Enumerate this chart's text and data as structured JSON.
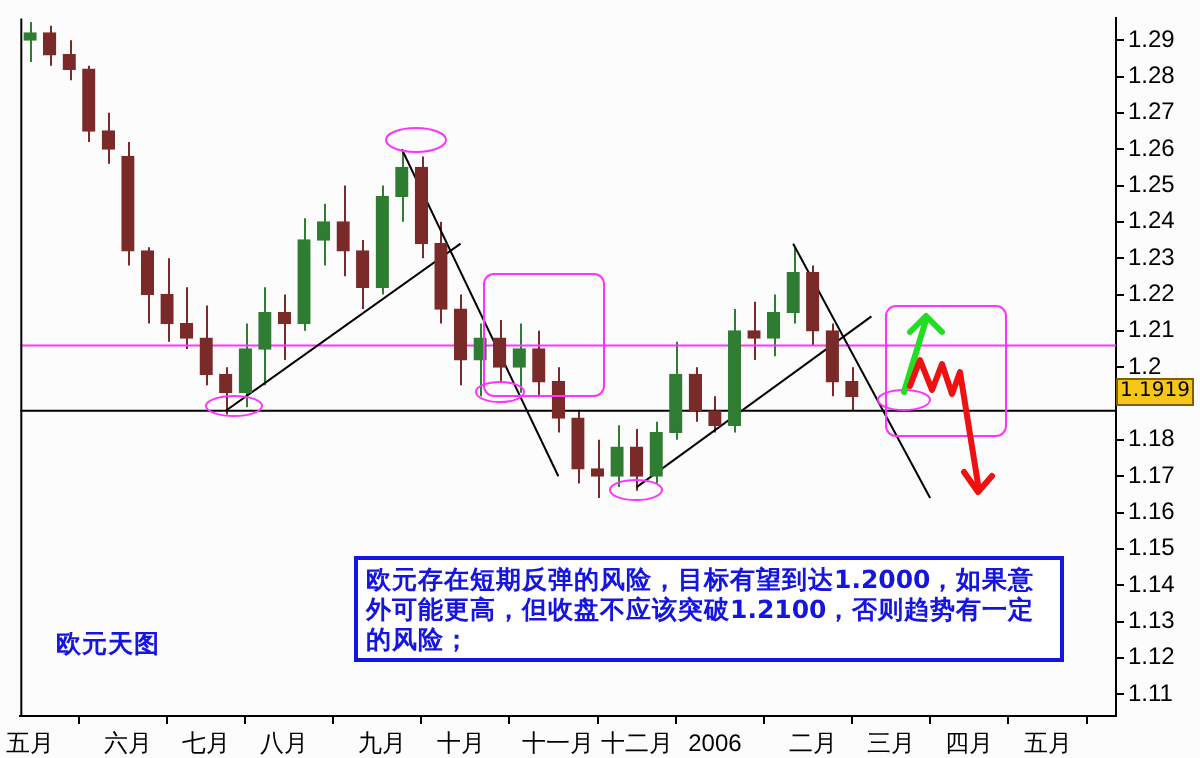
{
  "chart_data": {
    "type": "candlestick",
    "categories": [
      "五月",
      null,
      null,
      null,
      null,
      "六月",
      null,
      null,
      null,
      "七月",
      null,
      null,
      null,
      "八月",
      null,
      null,
      null,
      null,
      "九月",
      null,
      null,
      null,
      "十月",
      null,
      null,
      null,
      null,
      "十一月",
      null,
      null,
      null,
      "十二月",
      null,
      null,
      null,
      "2006",
      null,
      null,
      null,
      null,
      "二月",
      null,
      null,
      null,
      "三月",
      null,
      null,
      null,
      "四月",
      null,
      null,
      null,
      "五月",
      null,
      null,
      null
    ],
    "ohlc": [
      [
        1.29,
        1.295,
        1.284,
        1.292
      ],
      [
        1.292,
        1.294,
        1.283,
        1.286
      ],
      [
        1.286,
        1.29,
        1.279,
        1.282
      ],
      [
        1.282,
        1.283,
        1.262,
        1.265
      ],
      [
        1.265,
        1.27,
        1.256,
        1.26
      ],
      [
        1.258,
        1.262,
        1.228,
        1.232
      ],
      [
        1.232,
        1.233,
        1.212,
        1.22
      ],
      [
        1.22,
        1.23,
        1.207,
        1.212
      ],
      [
        1.212,
        1.222,
        1.205,
        1.208
      ],
      [
        1.208,
        1.217,
        1.195,
        1.198
      ],
      [
        1.198,
        1.2,
        1.187,
        1.193
      ],
      [
        1.193,
        1.212,
        1.189,
        1.205
      ],
      [
        1.205,
        1.222,
        1.195,
        1.215
      ],
      [
        1.215,
        1.22,
        1.202,
        1.212
      ],
      [
        1.212,
        1.241,
        1.21,
        1.235
      ],
      [
        1.235,
        1.245,
        1.228,
        1.24
      ],
      [
        1.24,
        1.25,
        1.225,
        1.232
      ],
      [
        1.232,
        1.235,
        1.216,
        1.222
      ],
      [
        1.222,
        1.25,
        1.22,
        1.247
      ],
      [
        1.247,
        1.259,
        1.24,
        1.255
      ],
      [
        1.255,
        1.258,
        1.23,
        1.234
      ],
      [
        1.234,
        1.24,
        1.212,
        1.216
      ],
      [
        1.216,
        1.22,
        1.195,
        1.202
      ],
      [
        1.202,
        1.212,
        1.192,
        1.208
      ],
      [
        1.208,
        1.213,
        1.196,
        1.2
      ],
      [
        1.2,
        1.212,
        1.193,
        1.205
      ],
      [
        1.205,
        1.21,
        1.192,
        1.196
      ],
      [
        1.196,
        1.2,
        1.182,
        1.186
      ],
      [
        1.186,
        1.188,
        1.168,
        1.172
      ],
      [
        1.172,
        1.18,
        1.164,
        1.17
      ],
      [
        1.17,
        1.184,
        1.167,
        1.178
      ],
      [
        1.178,
        1.183,
        1.166,
        1.17
      ],
      [
        1.17,
        1.185,
        1.168,
        1.182
      ],
      [
        1.182,
        1.207,
        1.18,
        1.198
      ],
      [
        1.198,
        1.2,
        1.185,
        1.188
      ],
      [
        1.188,
        1.192,
        1.182,
        1.184
      ],
      [
        1.184,
        1.216,
        1.182,
        1.21
      ],
      [
        1.21,
        1.218,
        1.202,
        1.208
      ],
      [
        1.208,
        1.22,
        1.203,
        1.215
      ],
      [
        1.215,
        1.233,
        1.212,
        1.226
      ],
      [
        1.226,
        1.228,
        1.206,
        1.21
      ],
      [
        1.21,
        1.212,
        1.192,
        1.196
      ],
      [
        1.196,
        1.2,
        1.188,
        1.1919
      ],
      null,
      null,
      null,
      null,
      null,
      null,
      null,
      null,
      null,
      null,
      null,
      null,
      null
    ],
    "colors": [
      "#2e7d32",
      "#7b2a2a",
      "#7b2a2a",
      "#7b2a2a",
      "#7b2a2a",
      "#7b2a2a",
      "#7b2a2a",
      "#7b2a2a",
      "#7b2a2a",
      "#7b2a2a",
      "#7b2a2a",
      "#2e7d32",
      "#2e7d32",
      "#7b2a2a",
      "#2e7d32",
      "#2e7d32",
      "#7b2a2a",
      "#7b2a2a",
      "#2e7d32",
      "#2e7d32",
      "#7b2a2a",
      "#7b2a2a",
      "#7b2a2a",
      "#2e7d32",
      "#7b2a2a",
      "#2e7d32",
      "#7b2a2a",
      "#7b2a2a",
      "#7b2a2a",
      "#7b2a2a",
      "#2e7d32",
      "#7b2a2a",
      "#2e7d32",
      "#2e7d32",
      "#7b2a2a",
      "#7b2a2a",
      "#2e7d32",
      "#7b2a2a",
      "#2e7d32",
      "#2e7d32",
      "#7b2a2a",
      "#7b2a2a",
      "#7b2a2a",
      null,
      null,
      null,
      null,
      null,
      null,
      null,
      null,
      null,
      null,
      null,
      null,
      null
    ],
    "series": [
      {
        "type": "line",
        "values": [
          null,
          null,
          null,
          null,
          null,
          null,
          null,
          null,
          null,
          null,
          1.188,
          null,
          null,
          null,
          null,
          null,
          null,
          null,
          null,
          null,
          null,
          null,
          1.234,
          null,
          null,
          null,
          null,
          null,
          null,
          null,
          null,
          null,
          null,
          null,
          null,
          null,
          null,
          null,
          null,
          null,
          null,
          null,
          null,
          null,
          null,
          null,
          null,
          null,
          null,
          null,
          null,
          null,
          null,
          null,
          null,
          null
        ],
        "color": "#000000"
      },
      {
        "type": "line",
        "values": [
          null,
          null,
          null,
          null,
          null,
          null,
          null,
          null,
          null,
          null,
          null,
          null,
          null,
          null,
          null,
          null,
          null,
          null,
          null,
          1.26,
          null,
          null,
          null,
          null,
          null,
          null,
          null,
          1.17,
          null,
          null,
          null,
          null,
          null,
          null,
          null,
          null,
          null,
          null,
          null,
          null,
          null,
          null,
          null,
          null,
          null,
          null,
          null,
          null,
          null,
          null,
          null,
          null,
          null,
          null,
          null,
          null
        ],
        "color": "#000000"
      },
      {
        "type": "line",
        "values": [
          null,
          null,
          null,
          null,
          null,
          null,
          null,
          null,
          null,
          null,
          null,
          null,
          null,
          null,
          null,
          null,
          null,
          null,
          null,
          null,
          null,
          null,
          null,
          null,
          null,
          null,
          null,
          null,
          null,
          null,
          null,
          1.167,
          null,
          null,
          null,
          null,
          null,
          null,
          null,
          null,
          null,
          null,
          null,
          1.214,
          null,
          null,
          null,
          null,
          null,
          null,
          null,
          null,
          null,
          null,
          null,
          null
        ],
        "color": "#000000"
      },
      {
        "type": "line",
        "values": [
          null,
          null,
          null,
          null,
          null,
          null,
          null,
          null,
          null,
          null,
          null,
          null,
          null,
          null,
          null,
          null,
          null,
          null,
          null,
          null,
          null,
          null,
          null,
          null,
          null,
          null,
          null,
          null,
          null,
          null,
          null,
          null,
          null,
          null,
          null,
          null,
          null,
          null,
          null,
          1.234,
          null,
          null,
          null,
          null,
          null,
          null,
          1.164,
          null,
          null,
          null,
          null,
          null,
          null,
          null,
          null,
          null
        ],
        "color": "#000000"
      }
    ],
    "ref_lines": [
      {
        "axis": "y",
        "value": 1.188,
        "color": "#000000"
      },
      {
        "axis": "y",
        "value": 1.206,
        "color": "#ff33ff"
      }
    ],
    "ylim": [
      1.104,
      1.296
    ],
    "yticks": [
      1.11,
      1.12,
      1.13,
      1.14,
      1.15,
      1.16,
      1.17,
      1.18,
      {
        "value": 1.19,
        "label": null
      },
      1.2,
      1.21,
      1.22,
      1.23,
      1.24,
      1.25,
      1.26,
      1.27,
      1.28,
      1.29
    ],
    "grid": false,
    "legend": false,
    "annotations": [
      "欧元存在短期反弹的风险，目标有望到达1.2000，如果意外可能更高，但收盘不应该突破1.2100，否则趋势有一定的风险；",
      "欧元天图",
      "1.1919"
    ]
  }
}
